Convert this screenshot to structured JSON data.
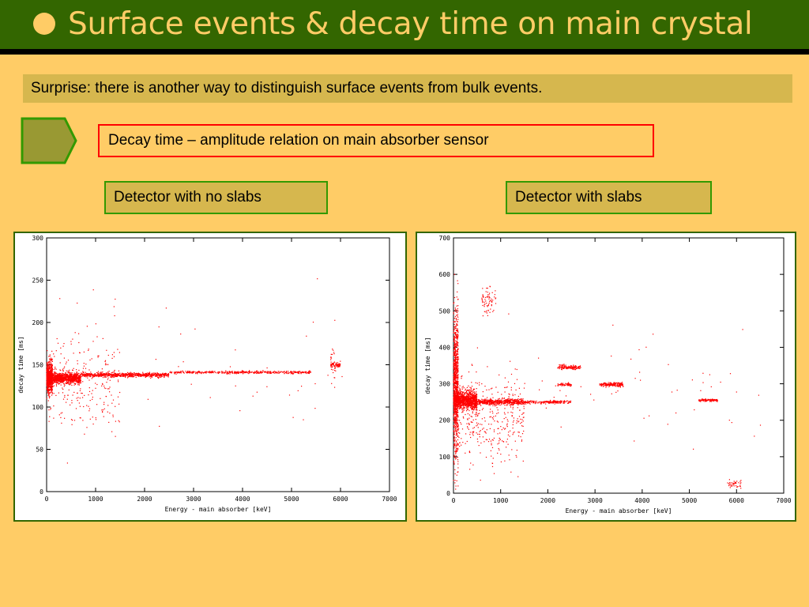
{
  "slide": {
    "title": "Surface events & decay time on main crystal",
    "intro": "Surprise: there is another way to distinguish surface events from bulk events.",
    "decay_label": "Decay time – amplitude relation on main absorber sensor",
    "left_label": "Detector with no slabs",
    "right_label": "Detector with slabs"
  },
  "colors": {
    "background": "#ffcc66",
    "title_bar": "#336600",
    "intro_fill": "#d6b74e",
    "arrow_fill": "#999933",
    "arrow_border": "#339900",
    "decay_border": "#ff0000",
    "points": "#ff0000"
  },
  "chart_data": [
    {
      "type": "scatter",
      "title": "",
      "xlabel": "Energy - main absorber [keV]",
      "ylabel": "decay time [ms]",
      "xlim": [
        0,
        7000
      ],
      "ylim": [
        0,
        300
      ],
      "xticks": [
        0,
        1000,
        2000,
        3000,
        4000,
        5000,
        6000,
        7000
      ],
      "yticks": [
        0,
        50,
        100,
        150,
        200,
        250,
        300
      ],
      "series": [
        {
          "color": "#ff0000",
          "clusters": [
            {
              "x_range": [
                0,
                120
              ],
              "y_center": 135,
              "y_spread": 18,
              "count": 700
            },
            {
              "x_range": [
                120,
                700
              ],
              "y_center": 134,
              "y_spread": 6,
              "count": 900
            },
            {
              "x_range": [
                700,
                2500
              ],
              "y_center": 138,
              "y_spread": 2.5,
              "count": 700
            },
            {
              "x_range": [
                2500,
                5400
              ],
              "y_center": 141,
              "y_spread": 1.5,
              "count": 450
            },
            {
              "x_range": [
                5800,
                6000
              ],
              "y_center": 150,
              "y_spread": 3,
              "count": 70
            },
            {
              "x_range": [
                5800,
                5900
              ],
              "y_center": 150,
              "y_spread": 30,
              "count": 25
            },
            {
              "x_range": [
                0,
                1500
              ],
              "y_center": 130,
              "y_spread": 60,
              "count": 250
            },
            {
              "x_range": [
                0,
                6500
              ],
              "y_center": 140,
              "y_spread": 80,
              "count": 40
            }
          ]
        }
      ]
    },
    {
      "type": "scatter",
      "title": "",
      "xlabel": "Energy - main absorber [keV]",
      "ylabel": "decay time [ms]",
      "xlim": [
        0,
        7000
      ],
      "ylim": [
        0,
        700
      ],
      "xticks": [
        0,
        1000,
        2000,
        3000,
        4000,
        5000,
        6000,
        7000
      ],
      "yticks": [
        0,
        100,
        200,
        300,
        400,
        500,
        600,
        700
      ],
      "series": [
        {
          "color": "#ff0000",
          "clusters": [
            {
              "x_range": [
                0,
                100
              ],
              "y_center": 300,
              "y_spread": 200,
              "count": 900
            },
            {
              "x_range": [
                0,
                500
              ],
              "y_center": 255,
              "y_spread": 25,
              "count": 1100
            },
            {
              "x_range": [
                500,
                1500
              ],
              "y_center": 250,
              "y_spread": 8,
              "count": 500
            },
            {
              "x_range": [
                1500,
                2500
              ],
              "y_center": 250,
              "y_spread": 4,
              "count": 200
            },
            {
              "x_range": [
                2200,
                2700
              ],
              "y_center": 345,
              "y_spread": 6,
              "count": 130
            },
            {
              "x_range": [
                2200,
                2500
              ],
              "y_center": 298,
              "y_spread": 4,
              "count": 60
            },
            {
              "x_range": [
                3100,
                3600
              ],
              "y_center": 298,
              "y_spread": 5,
              "count": 180
            },
            {
              "x_range": [
                5200,
                5600
              ],
              "y_center": 255,
              "y_spread": 3,
              "count": 110
            },
            {
              "x_range": [
                600,
                900
              ],
              "y_center": 530,
              "y_spread": 35,
              "count": 70
            },
            {
              "x_range": [
                5800,
                6100
              ],
              "y_center": 25,
              "y_spread": 10,
              "count": 40
            },
            {
              "x_range": [
                0,
                1500
              ],
              "y_center": 200,
              "y_spread": 130,
              "count": 350
            },
            {
              "x_range": [
                0,
                6700
              ],
              "y_center": 280,
              "y_spread": 160,
              "count": 70
            }
          ]
        }
      ]
    }
  ]
}
